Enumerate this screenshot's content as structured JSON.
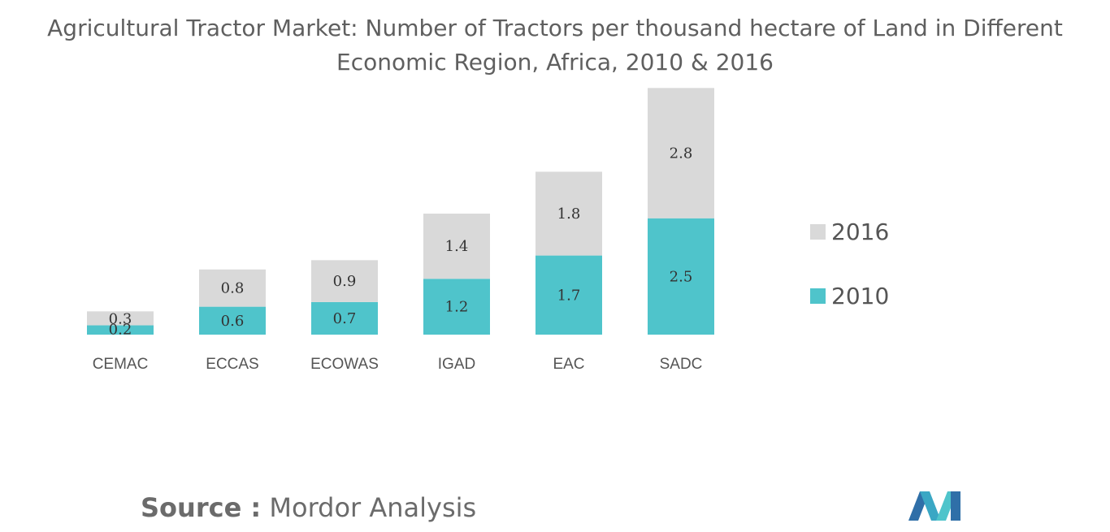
{
  "title_line1": "Agricultural Tractor Market: Number of Tractors per thousand hectare of Land in Different",
  "title_line2": "Economic Region, Africa, 2010 & 2016",
  "source": {
    "label": "Source :",
    "text": "Mordor Analysis"
  },
  "colors": {
    "2010": "#4fc4cb",
    "2016": "#d9d9d9",
    "text": "#555555",
    "title": "#5f5f5f"
  },
  "chart_data": {
    "type": "bar",
    "stacked": true,
    "categories": [
      "CEMAC",
      "ECCAS",
      "ECOWAS",
      "IGAD",
      "EAC",
      "SADC"
    ],
    "series": [
      {
        "name": "2010",
        "values": [
          0.2,
          0.6,
          0.7,
          1.2,
          1.7,
          2.5
        ]
      },
      {
        "name": "2016",
        "values": [
          0.3,
          0.8,
          0.9,
          1.4,
          1.8,
          2.8
        ]
      }
    ],
    "legend": [
      "2016",
      "2010"
    ],
    "legend_position": "right",
    "grid": false
  }
}
